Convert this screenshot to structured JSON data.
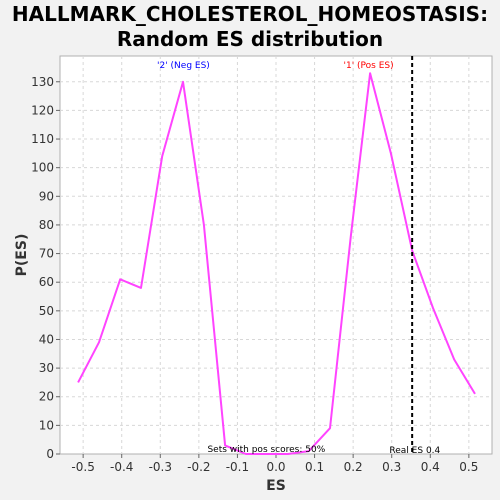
{
  "chart_data": {
    "type": "line",
    "title_line1": "HALLMARK_CHOLESTEROL_HOMEOSTASIS:",
    "title_line2": "Random ES distribution",
    "xlabel": "ES",
    "ylabel": "P(ES)",
    "xlim": [
      -0.56,
      0.56
    ],
    "ylim": [
      0,
      139
    ],
    "x_ticks": [
      -0.5,
      -0.4,
      -0.3,
      -0.2,
      -0.1,
      0.0,
      0.1,
      0.2,
      0.3,
      0.4,
      0.5
    ],
    "x_tick_labels": [
      "-0.5",
      "-0.4",
      "-0.3",
      "-0.2",
      "-0.1",
      "0.0",
      "0.1",
      "0.2",
      "0.3",
      "0.4",
      "0.5"
    ],
    "y_ticks": [
      0,
      10,
      20,
      30,
      40,
      50,
      60,
      70,
      80,
      90,
      100,
      110,
      120,
      130
    ],
    "grid": true,
    "series": [
      {
        "color": "#ff44ff",
        "x": [
          -0.513,
          -0.459,
          -0.404,
          -0.35,
          -0.295,
          -0.241,
          -0.187,
          -0.132,
          -0.078,
          -0.023,
          0.031,
          0.085,
          0.14,
          0.194,
          0.244,
          0.298,
          0.353,
          0.407,
          0.462,
          0.516
        ],
        "y": [
          25,
          39,
          61,
          58,
          104,
          130,
          80,
          3,
          0,
          0,
          0,
          1,
          9,
          76,
          133,
          105,
          71,
          51,
          33,
          21
        ]
      }
    ],
    "real_es": 0.353,
    "annotations": {
      "neg_label": "'2' (Neg ES)",
      "pos_label": "'1' (Pos ES)",
      "pos_scores": "Sets with pos scores: 50%",
      "real_es_label": "Real ES 0.4"
    },
    "colors": {
      "neg_label": "#0000ff",
      "pos_label": "#ff0000",
      "line": "#ff44ff",
      "real_es_line": "#000000"
    }
  }
}
